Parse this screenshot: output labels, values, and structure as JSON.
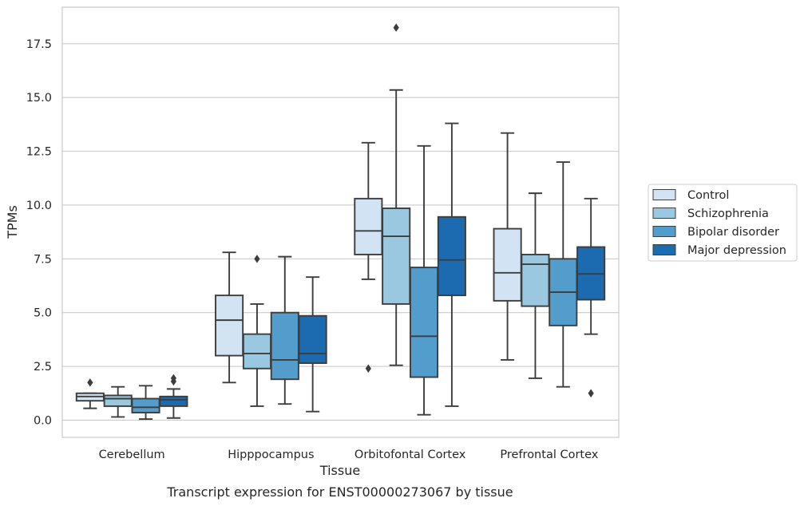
{
  "chart_data": {
    "type": "box",
    "title": "",
    "caption": "Transcript expression for ENST00000273067 by tissue",
    "xlabel": "Tissue",
    "ylabel": "TPMs",
    "ylim": [
      -0.8,
      19.2
    ],
    "yticks": [
      0.0,
      2.5,
      5.0,
      7.5,
      10.0,
      12.5,
      15.0,
      17.5
    ],
    "ytick_labels": [
      "0.0",
      "2.5",
      "5.0",
      "7.5",
      "10.0",
      "12.5",
      "15.0",
      "17.5"
    ],
    "grid": "horizontal",
    "legend_position": "right",
    "categories": [
      "Cerebellum",
      "Hipppocampus",
      "Orbitofontal Cortex",
      "Prefrontal Cortex"
    ],
    "series": [
      {
        "name": "Control",
        "color": "#d2e3f3",
        "boxes": [
          {
            "whisker_low": 0.55,
            "q1": 0.9,
            "median": 1.1,
            "q3": 1.25,
            "whisker_high": 1.25,
            "outliers": [
              1.75
            ]
          },
          {
            "whisker_low": 1.75,
            "q1": 3.0,
            "median": 4.65,
            "q3": 5.8,
            "whisker_high": 7.8,
            "outliers": []
          },
          {
            "whisker_low": 6.55,
            "q1": 7.7,
            "median": 8.8,
            "q3": 10.3,
            "whisker_high": 12.9,
            "outliers": [
              2.4
            ]
          },
          {
            "whisker_low": 2.8,
            "q1": 5.55,
            "median": 6.85,
            "q3": 8.9,
            "whisker_high": 13.35,
            "outliers": []
          }
        ]
      },
      {
        "name": "Schizophrenia",
        "color": "#9ac8e0",
        "boxes": [
          {
            "whisker_low": 0.15,
            "q1": 0.65,
            "median": 1.0,
            "q3": 1.15,
            "whisker_high": 1.55,
            "outliers": []
          },
          {
            "whisker_low": 0.65,
            "q1": 2.4,
            "median": 3.1,
            "q3": 4.0,
            "whisker_high": 5.4,
            "outliers": [
              7.5
            ]
          },
          {
            "whisker_low": 2.55,
            "q1": 5.4,
            "median": 8.55,
            "q3": 9.85,
            "whisker_high": 15.35,
            "outliers": [
              18.25
            ]
          },
          {
            "whisker_low": 1.95,
            "q1": 5.3,
            "median": 7.25,
            "q3": 7.7,
            "whisker_high": 10.55,
            "outliers": []
          }
        ]
      },
      {
        "name": "Bipolar disorder",
        "color": "#529dcc",
        "boxes": [
          {
            "whisker_low": 0.05,
            "q1": 0.35,
            "median": 0.6,
            "q3": 1.0,
            "whisker_high": 1.6,
            "outliers": []
          },
          {
            "whisker_low": 0.75,
            "q1": 1.9,
            "median": 2.8,
            "q3": 5.0,
            "whisker_high": 7.6,
            "outliers": []
          },
          {
            "whisker_low": 0.25,
            "q1": 2.0,
            "median": 3.9,
            "q3": 7.1,
            "whisker_high": 12.75,
            "outliers": []
          },
          {
            "whisker_low": 1.55,
            "q1": 4.4,
            "median": 5.95,
            "q3": 7.5,
            "whisker_high": 12.0,
            "outliers": []
          }
        ]
      },
      {
        "name": "Major depression",
        "color": "#1c6aaf",
        "boxes": [
          {
            "whisker_low": 0.1,
            "q1": 0.65,
            "median": 0.95,
            "q3": 1.1,
            "whisker_high": 1.45,
            "outliers": [
              1.8,
              1.95
            ]
          },
          {
            "whisker_low": 0.4,
            "q1": 2.65,
            "median": 3.1,
            "q3": 4.85,
            "whisker_high": 6.65,
            "outliers": []
          },
          {
            "whisker_low": 0.65,
            "q1": 5.8,
            "median": 7.45,
            "q3": 9.45,
            "whisker_high": 13.8,
            "outliers": []
          },
          {
            "whisker_low": 4.0,
            "q1": 5.6,
            "median": 6.8,
            "q3": 8.05,
            "whisker_high": 10.3,
            "outliers": [
              1.25
            ]
          }
        ]
      }
    ]
  }
}
